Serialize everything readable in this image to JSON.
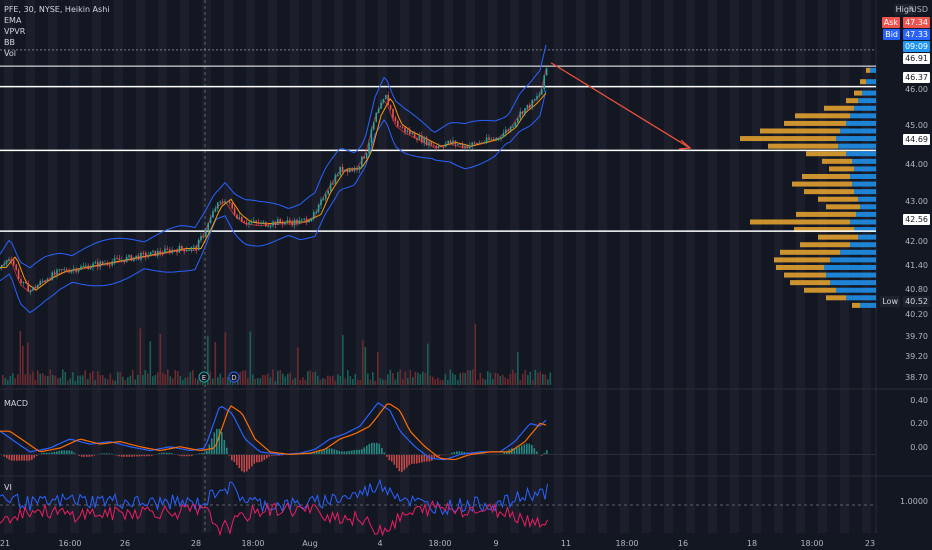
{
  "header": {
    "symbol_line": "PFE, 30, NYSE, Heikin Ashi",
    "indicators": [
      "EMA",
      "VPVR",
      "BB",
      "Vol"
    ]
  },
  "currency_label": "USD",
  "price_tags": {
    "high": "High",
    "ask_label": "Ask",
    "ask": "47.34",
    "bid_label": "Bid",
    "bid": "47.33",
    "countdown": "09:09",
    "last": "46.91",
    "low_label": "Low",
    "low": "40.52"
  },
  "levels": [
    "46.37",
    "44.69",
    "42.56"
  ],
  "price_axis": [
    "46.00",
    "45.00",
    "44.00",
    "43.00",
    "42.00",
    "41.40",
    "40.80",
    "40.20",
    "39.70",
    "39.20",
    "38.70"
  ],
  "macd_pane": {
    "label": "MACD",
    "axis": [
      "0.40",
      "0.20",
      "0.00"
    ]
  },
  "vi_pane": {
    "label": "VI",
    "axis": [
      "1.0000"
    ]
  },
  "event_badges": [
    "E",
    "D"
  ],
  "time_axis": [
    "21",
    "16:00",
    "26",
    "28",
    "18:00",
    "Aug",
    "4",
    "18:00",
    "9",
    "11",
    "18:00",
    "16",
    "18",
    "18:00",
    "23"
  ],
  "colors": {
    "background": "#131722",
    "up": "#26a69a",
    "down": "#ef5350",
    "ema": "#ff9800",
    "bb": "#2962ff",
    "vpvr_up": "#2196f3",
    "vpvr_down": "#e0a030",
    "macd": "#2962ff",
    "signal": "#ff6d00",
    "vi_plus": "#2962ff",
    "vi_minus": "#e91e63",
    "arrow": "#f0503c"
  },
  "chart_data": {
    "type": "candlestick",
    "title": "PFE, 30, NYSE, Heikin Ashi",
    "ylim": [
      38.5,
      47.6
    ],
    "horizontal_levels": [
      46.37,
      44.69,
      42.56
    ],
    "last_price": 46.91,
    "ask": 47.34,
    "bid": 47.33,
    "low": 40.52,
    "price_path": [
      [
        0,
        41.6
      ],
      [
        10,
        41.9
      ],
      [
        20,
        41.2
      ],
      [
        30,
        41.0
      ],
      [
        45,
        41.3
      ],
      [
        60,
        41.5
      ],
      [
        80,
        41.6
      ],
      [
        100,
        41.7
      ],
      [
        120,
        41.8
      ],
      [
        140,
        41.9
      ],
      [
        160,
        42.0
      ],
      [
        180,
        42.1
      ],
      [
        195,
        42.1
      ],
      [
        205,
        42.6
      ],
      [
        215,
        43.2
      ],
      [
        225,
        43.4
      ],
      [
        235,
        43.0
      ],
      [
        245,
        42.8
      ],
      [
        260,
        42.75
      ],
      [
        280,
        42.8
      ],
      [
        300,
        42.8
      ],
      [
        315,
        43.0
      ],
      [
        325,
        43.6
      ],
      [
        340,
        44.2
      ],
      [
        355,
        44.2
      ],
      [
        365,
        44.6
      ],
      [
        375,
        45.6
      ],
      [
        385,
        46.1
      ],
      [
        395,
        45.4
      ],
      [
        405,
        45.2
      ],
      [
        420,
        45.0
      ],
      [
        435,
        44.8
      ],
      [
        450,
        44.9
      ],
      [
        465,
        44.8
      ],
      [
        480,
        44.9
      ],
      [
        495,
        45.0
      ],
      [
        510,
        45.3
      ],
      [
        520,
        45.7
      ],
      [
        530,
        45.9
      ],
      [
        540,
        46.2
      ],
      [
        548,
        47.1
      ]
    ],
    "projection_arrow": {
      "from": [
        551,
        47.0
      ],
      "to": [
        690,
        44.75
      ]
    },
    "vpvr": [
      [
        46.8,
        6,
        4
      ],
      [
        46.5,
        10,
        6
      ],
      [
        46.2,
        14,
        8
      ],
      [
        46.0,
        18,
        12
      ],
      [
        45.8,
        22,
        30
      ],
      [
        45.6,
        26,
        55
      ],
      [
        45.4,
        30,
        62
      ],
      [
        45.2,
        36,
        80
      ],
      [
        45.0,
        40,
        96
      ],
      [
        44.8,
        38,
        70
      ],
      [
        44.6,
        30,
        40
      ],
      [
        44.4,
        24,
        30
      ],
      [
        44.2,
        22,
        25
      ],
      [
        44.0,
        26,
        48
      ],
      [
        43.8,
        24,
        60
      ],
      [
        43.6,
        22,
        50
      ],
      [
        43.4,
        18,
        40
      ],
      [
        43.2,
        16,
        34
      ],
      [
        43.0,
        20,
        60
      ],
      [
        42.8,
        26,
        100
      ],
      [
        42.6,
        22,
        60
      ],
      [
        42.4,
        18,
        40
      ],
      [
        42.2,
        26,
        50
      ],
      [
        42.0,
        36,
        60
      ],
      [
        41.8,
        46,
        56
      ],
      [
        41.6,
        52,
        48
      ],
      [
        41.4,
        50,
        42
      ],
      [
        41.2,
        46,
        40
      ],
      [
        41.0,
        40,
        32
      ],
      [
        40.8,
        30,
        20
      ],
      [
        40.6,
        16,
        8
      ]
    ],
    "macd_ylim": [
      -0.12,
      0.46
    ],
    "macd_path": [
      [
        0,
        0.18
      ],
      [
        15,
        0.1
      ],
      [
        30,
        0.02
      ],
      [
        50,
        0.05
      ],
      [
        70,
        0.12
      ],
      [
        90,
        0.08
      ],
      [
        110,
        0.1
      ],
      [
        130,
        0.06
      ],
      [
        150,
        0.03
      ],
      [
        170,
        0.06
      ],
      [
        190,
        0.03
      ],
      [
        205,
        0.05
      ],
      [
        220,
        0.38
      ],
      [
        232,
        0.32
      ],
      [
        245,
        0.12
      ],
      [
        260,
        0.02
      ],
      [
        280,
        0.0
      ],
      [
        300,
        0.01
      ],
      [
        315,
        0.04
      ],
      [
        330,
        0.12
      ],
      [
        345,
        0.16
      ],
      [
        360,
        0.22
      ],
      [
        378,
        0.4
      ],
      [
        390,
        0.34
      ],
      [
        400,
        0.18
      ],
      [
        415,
        0.06
      ],
      [
        430,
        -0.03
      ],
      [
        445,
        -0.04
      ],
      [
        460,
        0.0
      ],
      [
        480,
        0.02
      ],
      [
        500,
        0.02
      ],
      [
        515,
        0.1
      ],
      [
        530,
        0.24
      ],
      [
        540,
        0.22
      ],
      [
        548,
        0.28
      ]
    ],
    "vi_ylim": [
      0.7,
      1.3
    ],
    "vi_level": 1.0
  }
}
